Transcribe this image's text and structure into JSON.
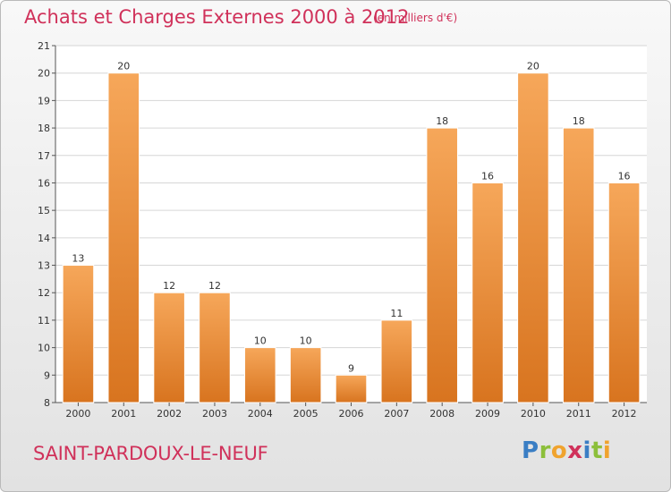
{
  "header": {
    "title": "Achats et Charges Externes 2000 à 2012",
    "subtitle": "(en milliers d'€)"
  },
  "footer": {
    "commune": "SAINT-PARDOUX-LE-NEUF",
    "logo_text": "Proxiti"
  },
  "colors": {
    "accent": "#d0315a",
    "bar_light": "#f6a75a",
    "bar_dark": "#d8741f"
  },
  "chart_data": {
    "type": "bar",
    "title": "Achats et Charges Externes 2000 à 2012",
    "subtitle": "(en milliers d'€)",
    "xlabel": "",
    "ylabel": "",
    "categories": [
      "2000",
      "2001",
      "2002",
      "2003",
      "2004",
      "2005",
      "2006",
      "2007",
      "2008",
      "2009",
      "2010",
      "2011",
      "2012"
    ],
    "values": [
      13,
      20,
      12,
      12,
      10,
      10,
      9,
      11,
      18,
      16,
      20,
      18,
      16
    ],
    "ylim": [
      8,
      21
    ],
    "yticks": [
      8,
      9,
      10,
      11,
      12,
      13,
      14,
      15,
      16,
      17,
      18,
      19,
      20,
      21
    ],
    "grid": true,
    "legend": "none"
  }
}
